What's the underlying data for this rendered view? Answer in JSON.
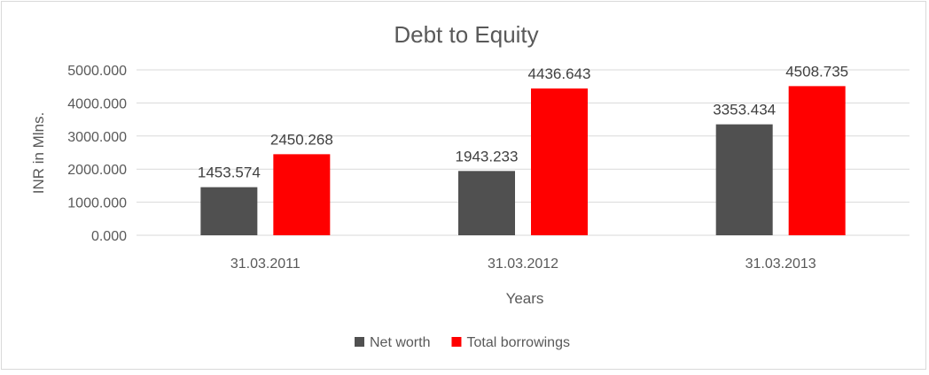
{
  "chart_data": {
    "type": "bar",
    "title": "Debt to Equity",
    "xlabel": "Years",
    "ylabel": "INR in Mlns.",
    "categories": [
      "31.03.2011",
      "31.03.2012",
      "31.03.2013"
    ],
    "series": [
      {
        "name": "Net worth",
        "values": [
          1453.574,
          1943.233,
          3353.434
        ],
        "labels": [
          "1453.574",
          "1943.233",
          "3353.434"
        ],
        "color": "#505050"
      },
      {
        "name": "Total borrowings",
        "values": [
          2450.268,
          4436.643,
          4508.735
        ],
        "labels": [
          "2450.268",
          "4436.643",
          "4508.735"
        ],
        "color": "#ff0000"
      }
    ],
    "ylim": [
      0,
      5000
    ],
    "yticks": [
      0,
      1000,
      2000,
      3000,
      4000,
      5000
    ],
    "ytick_labels": [
      "0.000",
      "1000.000",
      "2000.000",
      "3000.000",
      "4000.000",
      "5000.000"
    ],
    "grid": true,
    "legend_position": "bottom"
  }
}
